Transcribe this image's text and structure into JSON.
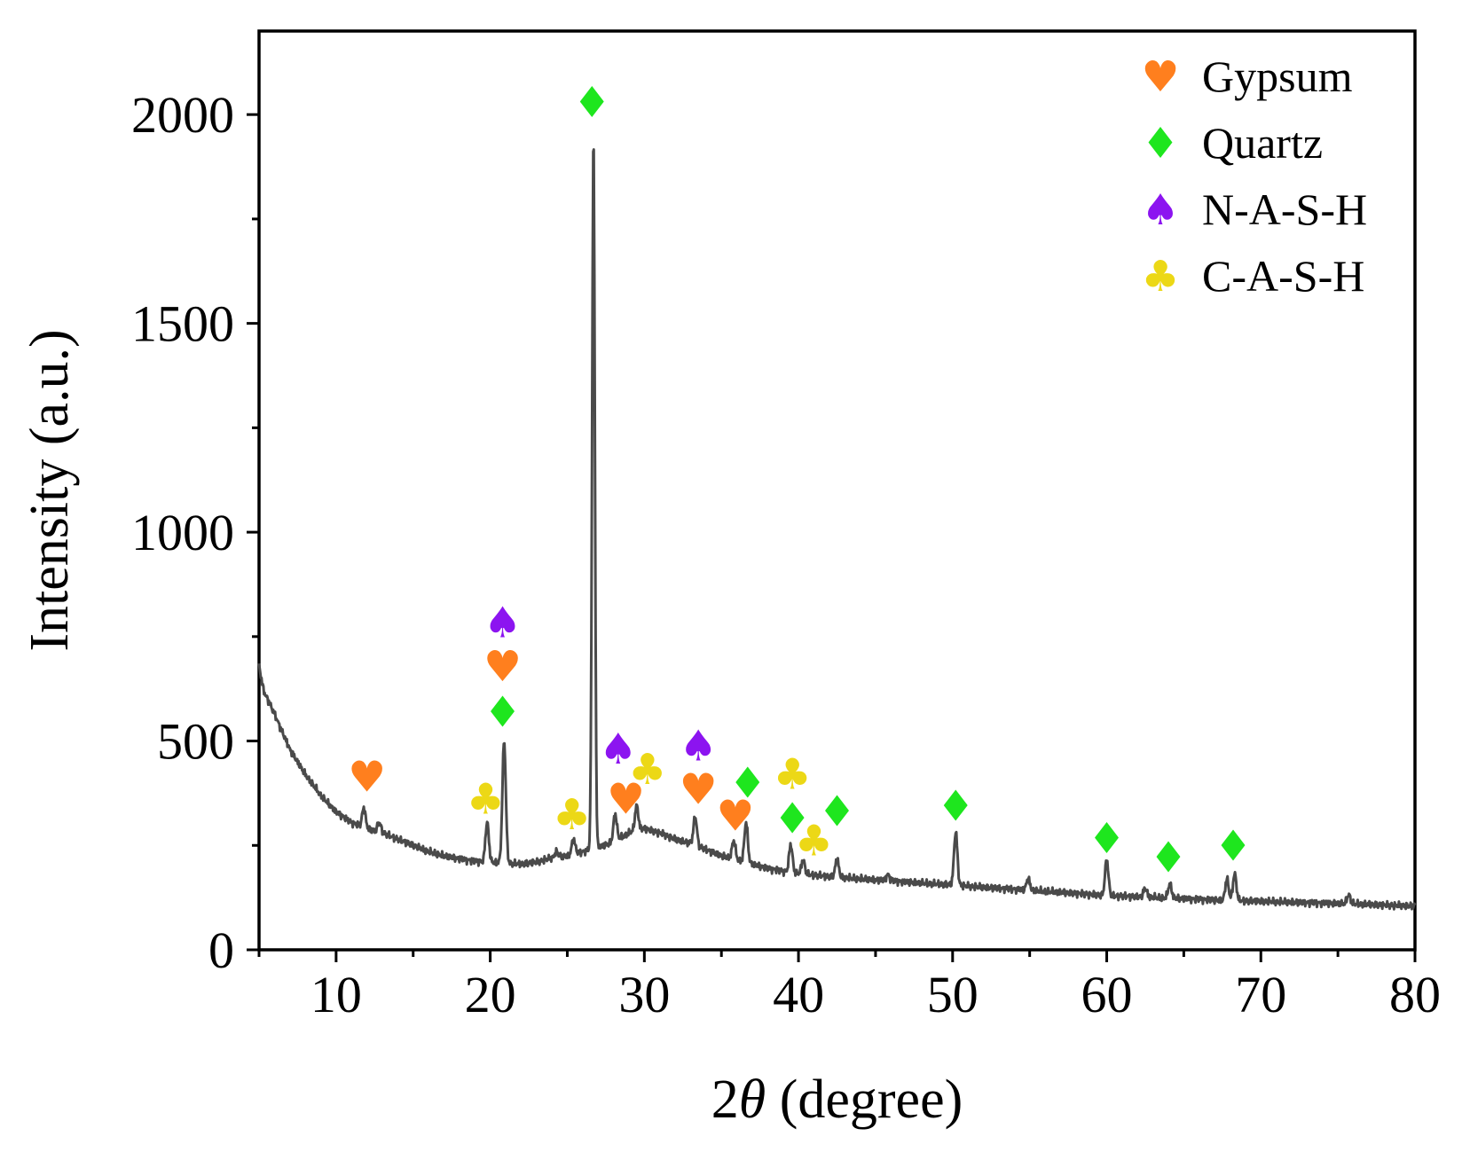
{
  "chart_data": {
    "type": "line",
    "title": "",
    "xlabel_prefix": "2",
    "xlabel_symbol": "θ",
    "xlabel_suffix": " (degree)",
    "ylabel": "Intensity (a.u.)",
    "xlim": [
      5,
      80
    ],
    "ylim": [
      0,
      2200
    ],
    "x_ticks": [
      10,
      20,
      30,
      40,
      50,
      60,
      70,
      80
    ],
    "x_tick_labels": [
      "10",
      "20",
      "30",
      "40",
      "50",
      "60",
      "70",
      "80"
    ],
    "x_minor_ticks": [
      5,
      15,
      25,
      35,
      45,
      55,
      65,
      75
    ],
    "y_ticks": [
      0,
      500,
      1000,
      1500,
      2000
    ],
    "y_tick_labels": [
      "0",
      "500",
      "1000",
      "1500",
      "2000"
    ],
    "y_minor_ticks": [
      250,
      750,
      1250,
      1750
    ],
    "line_color": "#4a4a4a",
    "baseline": [
      [
        5,
        680
      ],
      [
        5.3,
        620
      ],
      [
        6,
        565
      ],
      [
        7,
        480
      ],
      [
        8,
        420
      ],
      [
        9,
        370
      ],
      [
        10,
        330
      ],
      [
        11,
        305
      ],
      [
        12,
        290
      ],
      [
        13,
        280
      ],
      [
        14,
        265
      ],
      [
        15,
        250
      ],
      [
        16,
        235
      ],
      [
        17,
        225
      ],
      [
        18,
        218
      ],
      [
        19,
        212
      ],
      [
        20,
        210
      ],
      [
        21,
        208
      ],
      [
        22,
        205
      ],
      [
        23,
        210
      ],
      [
        24,
        220
      ],
      [
        25,
        225
      ],
      [
        26,
        235
      ],
      [
        27,
        245
      ],
      [
        28,
        258
      ],
      [
        29,
        280
      ],
      [
        30,
        290
      ],
      [
        31,
        280
      ],
      [
        32,
        265
      ],
      [
        33,
        255
      ],
      [
        34,
        240
      ],
      [
        35,
        225
      ],
      [
        36,
        215
      ],
      [
        37,
        205
      ],
      [
        38,
        195
      ],
      [
        39,
        188
      ],
      [
        40,
        183
      ],
      [
        42,
        175
      ],
      [
        44,
        170
      ],
      [
        46,
        165
      ],
      [
        48,
        160
      ],
      [
        50,
        155
      ],
      [
        52,
        150
      ],
      [
        54,
        145
      ],
      [
        56,
        140
      ],
      [
        58,
        135
      ],
      [
        60,
        130
      ],
      [
        62,
        127
      ],
      [
        64,
        124
      ],
      [
        66,
        121
      ],
      [
        68,
        118
      ],
      [
        70,
        116
      ],
      [
        72,
        114
      ],
      [
        74,
        112
      ],
      [
        76,
        110
      ],
      [
        78,
        107
      ],
      [
        80,
        105
      ]
    ],
    "peaks": [
      {
        "x": 11.8,
        "height": 340
      },
      {
        "x": 12.8,
        "height": 305
      },
      {
        "x": 19.8,
        "height": 305
      },
      {
        "x": 20.9,
        "height": 500
      },
      {
        "x": 24.3,
        "height": 235
      },
      {
        "x": 25.4,
        "height": 265
      },
      {
        "x": 26.7,
        "height": 1955
      },
      {
        "x": 28.1,
        "height": 325
      },
      {
        "x": 29.5,
        "height": 345
      },
      {
        "x": 33.3,
        "height": 318
      },
      {
        "x": 35.8,
        "height": 262
      },
      {
        "x": 36.6,
        "height": 305
      },
      {
        "x": 39.5,
        "height": 252
      },
      {
        "x": 40.3,
        "height": 215
      },
      {
        "x": 42.5,
        "height": 218
      },
      {
        "x": 45.8,
        "height": 180
      },
      {
        "x": 50.2,
        "height": 282
      },
      {
        "x": 54.9,
        "height": 170
      },
      {
        "x": 60.0,
        "height": 215
      },
      {
        "x": 62.5,
        "height": 148
      },
      {
        "x": 64.1,
        "height": 158
      },
      {
        "x": 67.8,
        "height": 170
      },
      {
        "x": 68.3,
        "height": 182
      },
      {
        "x": 75.7,
        "height": 132
      }
    ],
    "legend_position": "top-right",
    "phases": [
      {
        "key": "gypsum",
        "name": "Gypsum",
        "symbol": "♥",
        "icon": "heart-icon",
        "color": "#ff7f1e"
      },
      {
        "key": "quartz",
        "name": "Quartz",
        "symbol": "♦",
        "icon": "diamond-icon",
        "color": "#1ee61e"
      },
      {
        "key": "nash",
        "name": "N-A-S-H",
        "symbol": "♠",
        "icon": "spade-icon",
        "color": "#8c14f0"
      },
      {
        "key": "cash",
        "name": "C-A-S-H",
        "symbol": "♣",
        "icon": "club-icon",
        "color": "#ecd816"
      }
    ],
    "annotations": [
      {
        "phase": "gypsum",
        "x": 12.0,
        "y": 415
      },
      {
        "phase": "cash",
        "x": 19.7,
        "y": 362
      },
      {
        "phase": "nash",
        "x": 20.8,
        "y": 785
      },
      {
        "phase": "gypsum",
        "x": 20.8,
        "y": 680
      },
      {
        "phase": "quartz",
        "x": 20.8,
        "y": 570
      },
      {
        "phase": "cash",
        "x": 25.3,
        "y": 325
      },
      {
        "phase": "quartz",
        "x": 26.6,
        "y": 2030
      },
      {
        "phase": "nash",
        "x": 28.3,
        "y": 482
      },
      {
        "phase": "gypsum",
        "x": 28.8,
        "y": 362
      },
      {
        "phase": "cash",
        "x": 30.2,
        "y": 433
      },
      {
        "phase": "nash",
        "x": 33.5,
        "y": 490
      },
      {
        "phase": "gypsum",
        "x": 33.5,
        "y": 385
      },
      {
        "phase": "gypsum",
        "x": 35.9,
        "y": 322
      },
      {
        "phase": "quartz",
        "x": 36.7,
        "y": 400
      },
      {
        "phase": "quartz",
        "x": 39.6,
        "y": 315
      },
      {
        "phase": "cash",
        "x": 39.6,
        "y": 422
      },
      {
        "phase": "cash",
        "x": 41.0,
        "y": 262
      },
      {
        "phase": "quartz",
        "x": 42.5,
        "y": 332
      },
      {
        "phase": "quartz",
        "x": 50.2,
        "y": 345
      },
      {
        "phase": "quartz",
        "x": 60.0,
        "y": 268
      },
      {
        "phase": "quartz",
        "x": 64.0,
        "y": 222
      },
      {
        "phase": "quartz",
        "x": 68.2,
        "y": 250
      }
    ]
  }
}
